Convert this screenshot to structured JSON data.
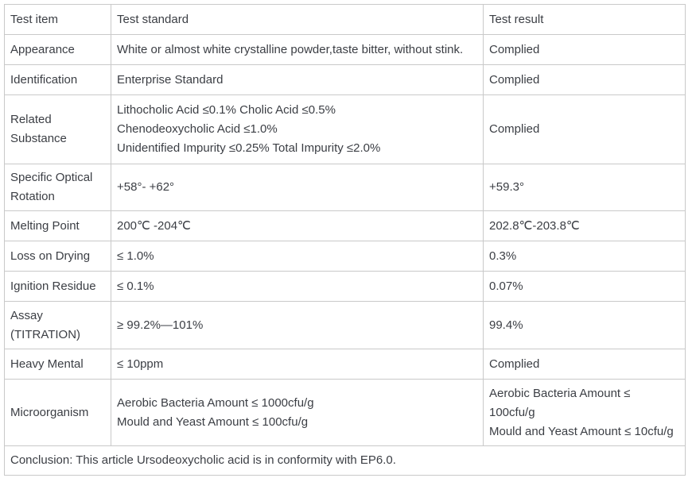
{
  "colors": {
    "border": "#c9c9c9",
    "text": "#3b3e44",
    "background": "#ffffff"
  },
  "table": {
    "headers": [
      "Test item",
      "Test standard",
      "Test result"
    ],
    "rows": [
      {
        "item": "Appearance",
        "standard": "White or almost white crystalline powder,taste bitter, without stink.",
        "result": "Complied"
      },
      {
        "item": "Identification",
        "standard": "Enterprise Standard",
        "result": "Complied"
      },
      {
        "item": "Related Substance",
        "standard": "Lithocholic Acid ≤0.1% Cholic Acid ≤0.5%\nChenodeoxycholic Acid ≤1.0%\nUnidentified Impurity ≤0.25% Total Impurity ≤2.0%",
        "result": "Complied"
      },
      {
        "item": "Specific Optical Rotation",
        "standard": "+58°- +62°",
        "result": "+59.3°"
      },
      {
        "item": "Melting Point",
        "standard": "200℃ -204℃",
        "result": "202.8℃-203.8℃"
      },
      {
        "item": "Loss on Drying",
        "standard": "≤ 1.0%",
        "result": "0.3%"
      },
      {
        "item": "Ignition Residue",
        "standard": "≤ 0.1%",
        "result": "0.07%"
      },
      {
        "item": "Assay (TITRATION)",
        "standard": "≥ 99.2%—101%",
        "result": "99.4%"
      },
      {
        "item": "Heavy Mental",
        "standard": "≤ 10ppm",
        "result": "Complied"
      },
      {
        "item": "Microorganism",
        "standard": "Aerobic Bacteria Amount ≤ 1000cfu/g\nMould and Yeast Amount ≤ 100cfu/g",
        "result": "Aerobic Bacteria Amount ≤ 100cfu/g\nMould and Yeast Amount ≤ 10cfu/g"
      }
    ],
    "conclusion": "Conclusion: This article Ursodeoxycholic acid is in conformity with EP6.0."
  }
}
